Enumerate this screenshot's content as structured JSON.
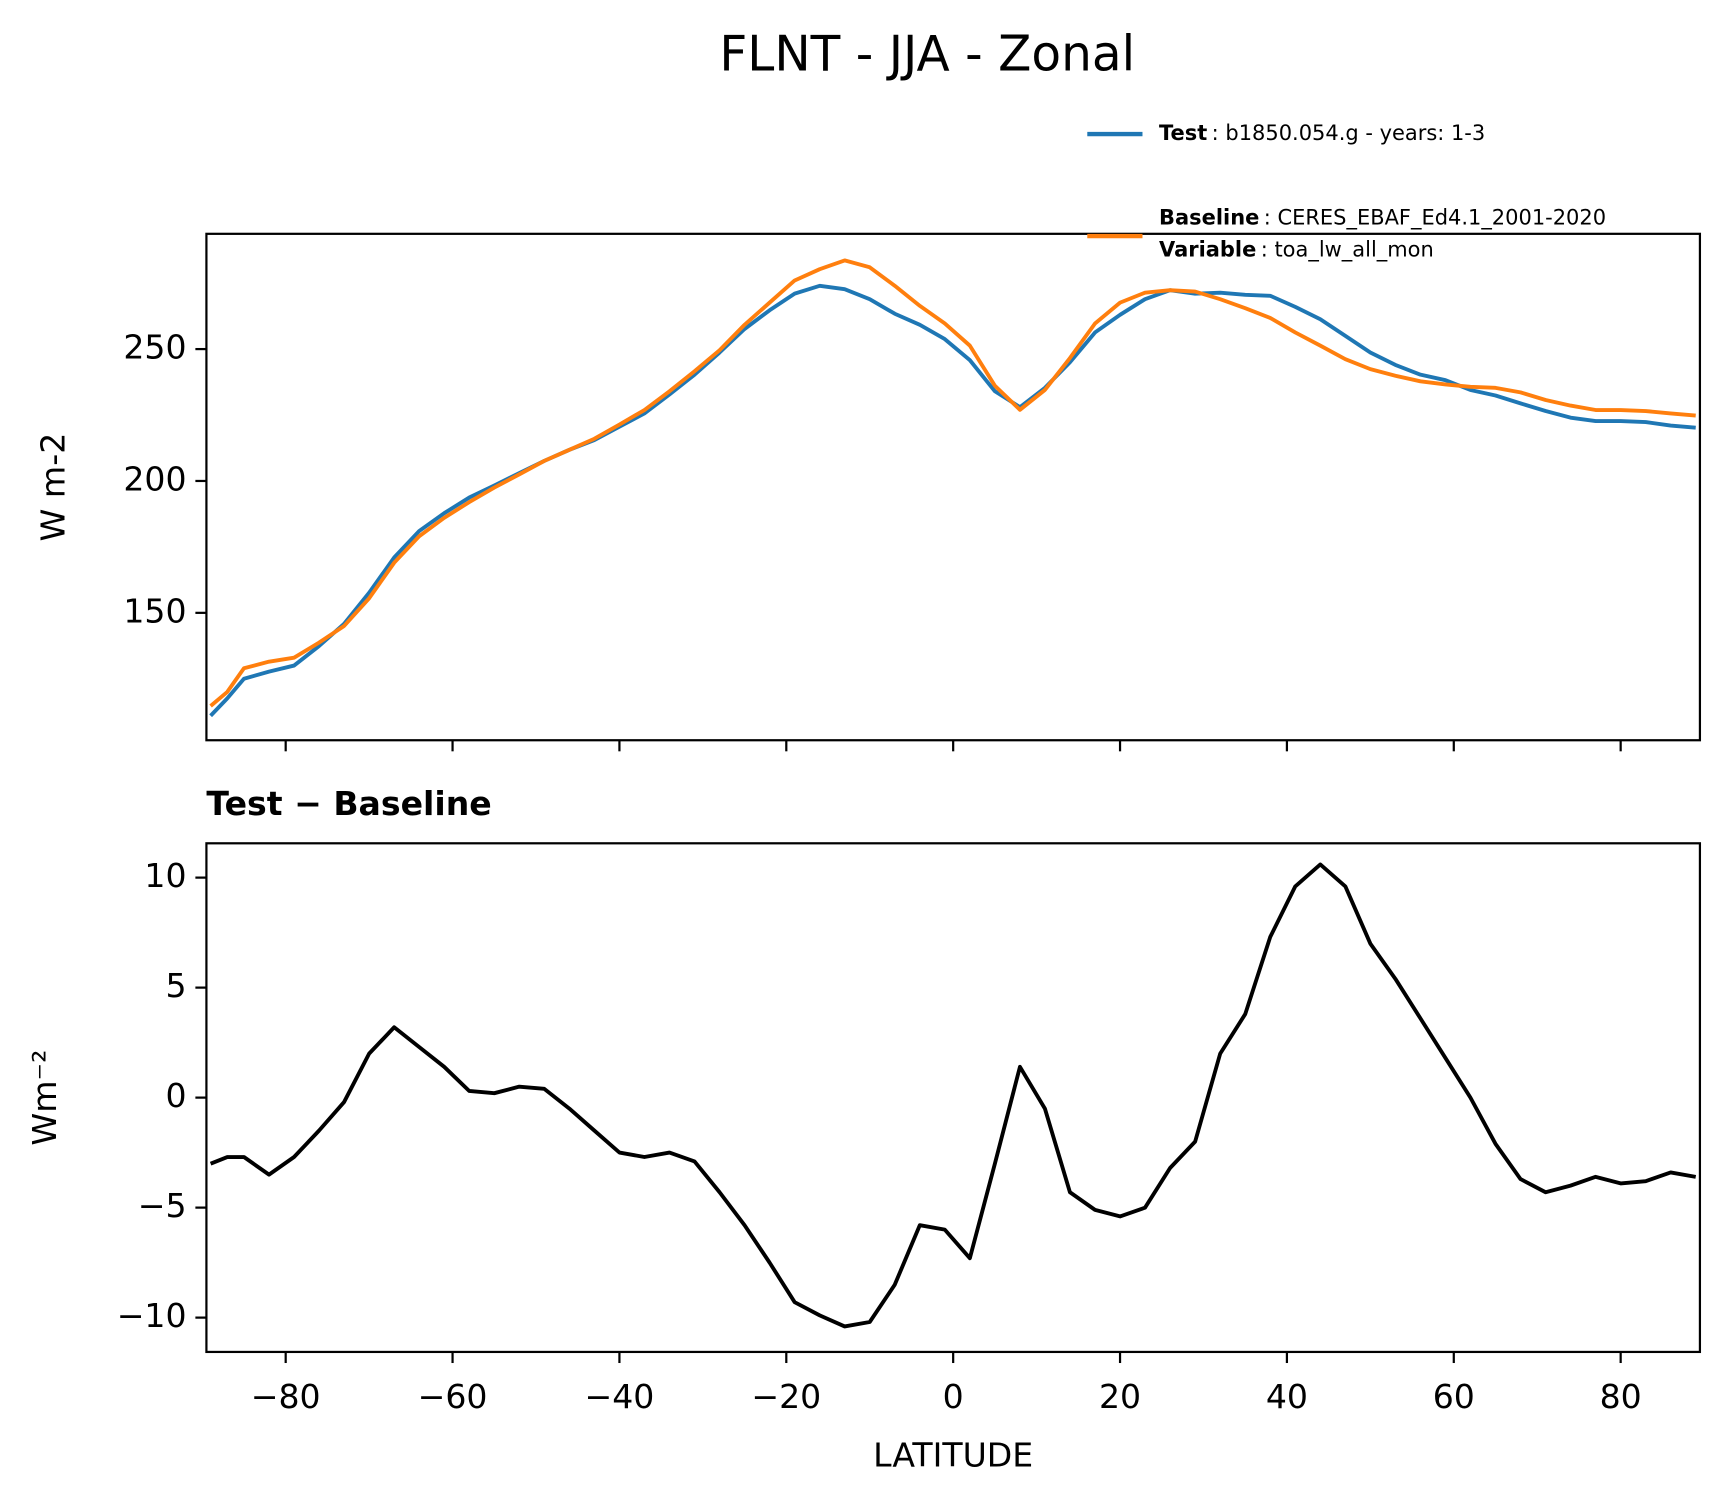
{
  "title": "FLNT - JJA - Zonal",
  "chart_data": [
    {
      "type": "line",
      "ylabel": "W m-2",
      "x": [
        -89,
        -87,
        -85,
        -82,
        -79,
        -76,
        -73,
        -70,
        -67,
        -64,
        -61,
        -58,
        -55,
        -52,
        -49,
        -46,
        -43,
        -40,
        -37,
        -34,
        -31,
        -28,
        -25,
        -22,
        -19,
        -16,
        -13,
        -10,
        -7,
        -4,
        -1,
        2,
        5,
        8,
        11,
        14,
        17,
        20,
        23,
        26,
        29,
        32,
        35,
        38,
        41,
        44,
        47,
        50,
        53,
        56,
        59,
        62,
        65,
        68,
        71,
        74,
        77,
        80,
        83,
        86,
        89
      ],
      "series": [
        {
          "name": "Test",
          "detail": ": b1850.054.g - years: 1-3",
          "color": "#1f77b4",
          "values": [
            111,
            117.6,
            125,
            127.7,
            130,
            137.4,
            145.8,
            157.6,
            171,
            181,
            187.8,
            193.7,
            198.3,
            203,
            207.6,
            211.8,
            215.5,
            220.6,
            225.6,
            232.8,
            240.3,
            248.7,
            257.6,
            264.7,
            271,
            274,
            272.7,
            268.9,
            263.4,
            259.2,
            253.8,
            245.8,
            234,
            228,
            235.3,
            245,
            256.3,
            263,
            268.9,
            272.3,
            271,
            271.4,
            270.6,
            270.2,
            266,
            261.3,
            255,
            248.7,
            244,
            240.3,
            238.2,
            234.5,
            232.4,
            229.4,
            226.5,
            224,
            222.7,
            222.7,
            222.3,
            221,
            220.2
          ]
        },
        {
          "name": "Baseline",
          "detail": ": CERES_EBAF_Ed4.1_2001-2020",
          "color": "#ff7f0e",
          "extra": {
            "name": "Variable",
            "detail": ": toa_lw_all_mon"
          },
          "values": [
            114.7,
            120,
            129,
            131.5,
            133,
            138.7,
            145,
            155.5,
            169,
            179,
            186,
            192,
            197.5,
            202.5,
            207.6,
            211.8,
            216,
            221.4,
            226.9,
            234,
            241.6,
            249.6,
            259.2,
            267.6,
            276,
            280.3,
            283.6,
            281,
            274,
            266.4,
            259.7,
            251.3,
            236.1,
            227,
            234.5,
            246.6,
            259.7,
            267.6,
            271.4,
            272.3,
            271.8,
            268.9,
            265.5,
            261.8,
            256.3,
            251.3,
            246.2,
            242.4,
            239.9,
            237.8,
            236.6,
            235.7,
            235.3,
            233.6,
            230.7,
            228.6,
            226.9,
            226.9,
            226.5,
            225.6,
            224.8
          ]
        }
      ],
      "xlim": [
        -89.5,
        89.5
      ],
      "ylim": [
        101.7,
        293.7
      ],
      "xticks": [
        -80,
        -60,
        -40,
        -20,
        0,
        20,
        40,
        60,
        80
      ],
      "xtick_labels": false,
      "yticks": [
        150,
        200,
        250
      ]
    },
    {
      "type": "line",
      "title": "Test − Baseline",
      "ylabel": "Wm⁻²",
      "xlabel": "LATITUDE",
      "x": [
        -89,
        -87,
        -85,
        -82,
        -79,
        -76,
        -73,
        -70,
        -67,
        -64,
        -61,
        -58,
        -55,
        -52,
        -49,
        -46,
        -43,
        -40,
        -37,
        -34,
        -31,
        -28,
        -25,
        -22,
        -19,
        -16,
        -13,
        -10,
        -7,
        -4,
        -1,
        2,
        5,
        8,
        11,
        14,
        17,
        20,
        23,
        26,
        29,
        32,
        35,
        38,
        41,
        44,
        47,
        50,
        53,
        56,
        59,
        62,
        65,
        68,
        71,
        74,
        77,
        80,
        83,
        86,
        89
      ],
      "series": [
        {
          "color": "#000000",
          "values": [
            -3.0,
            -2.7,
            -2.7,
            -3.5,
            -2.7,
            -1.5,
            -0.2,
            2.0,
            3.2,
            2.3,
            1.4,
            0.3,
            0.2,
            0.5,
            0.4,
            -0.5,
            -1.5,
            -2.5,
            -2.7,
            -2.5,
            -2.9,
            -4.3,
            -5.8,
            -7.5,
            -9.3,
            -9.9,
            -10.4,
            -10.2,
            -8.5,
            -5.8,
            -6.0,
            -7.3,
            -3.0,
            1.4,
            -0.5,
            -4.3,
            -5.1,
            -5.4,
            -5.0,
            -3.2,
            -2.0,
            2.0,
            3.8,
            7.3,
            9.6,
            10.6,
            9.6,
            7.0,
            5.4,
            3.6,
            1.8,
            0.0,
            -2.1,
            -3.7,
            -4.3,
            -4.0,
            -3.6,
            -3.9,
            -3.8,
            -3.4,
            -3.6
          ]
        }
      ],
      "xlim": [
        -89.5,
        89.5
      ],
      "ylim": [
        -11.56,
        11.56
      ],
      "xticks": [
        {
          "value": -80,
          "label": "−80"
        },
        {
          "value": -60,
          "label": "−60"
        },
        {
          "value": -40,
          "label": "−40"
        },
        {
          "value": -20,
          "label": "−20"
        },
        0,
        20,
        40,
        60,
        80
      ],
      "xtick_labels": true,
      "yticks": [
        {
          "value": -10,
          "label": "−10"
        },
        {
          "value": -5,
          "label": "−5"
        },
        0,
        5,
        10
      ]
    }
  ]
}
